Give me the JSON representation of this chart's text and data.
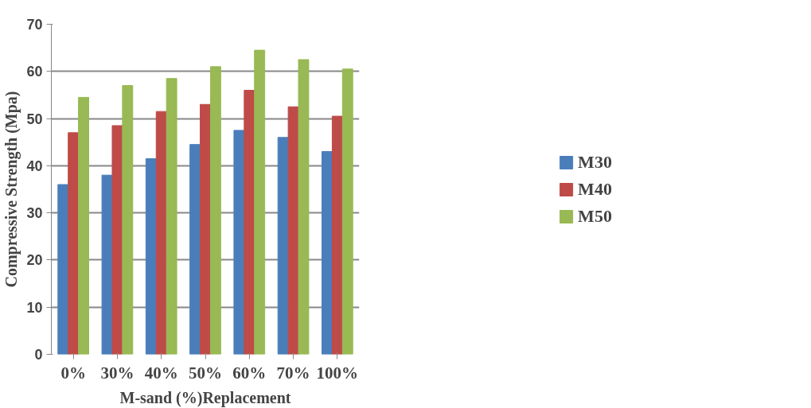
{
  "chart_data": {
    "type": "bar",
    "xlabel": "M-sand (%)Replacement",
    "ylabel": "Compressive Strength (Mpa)",
    "categories": [
      "0%",
      "30%",
      "40%",
      "50%",
      "60%",
      "70%",
      "100%"
    ],
    "series": [
      {
        "name": "M30",
        "color": "#4a7ebb",
        "values": [
          36,
          38,
          41.5,
          44.5,
          47.5,
          46,
          43
        ]
      },
      {
        "name": "M40",
        "color": "#be4b48",
        "values": [
          47,
          48.5,
          51.5,
          53,
          56,
          52.5,
          50.5
        ]
      },
      {
        "name": "M50",
        "color": "#98b954",
        "values": [
          54.5,
          57,
          58.5,
          61,
          64.5,
          62.5,
          60.5
        ]
      }
    ],
    "ylim": [
      0,
      70
    ],
    "yticks": [
      0,
      10,
      20,
      30,
      40,
      50,
      60,
      70
    ],
    "grid": "y",
    "legend": "right"
  }
}
